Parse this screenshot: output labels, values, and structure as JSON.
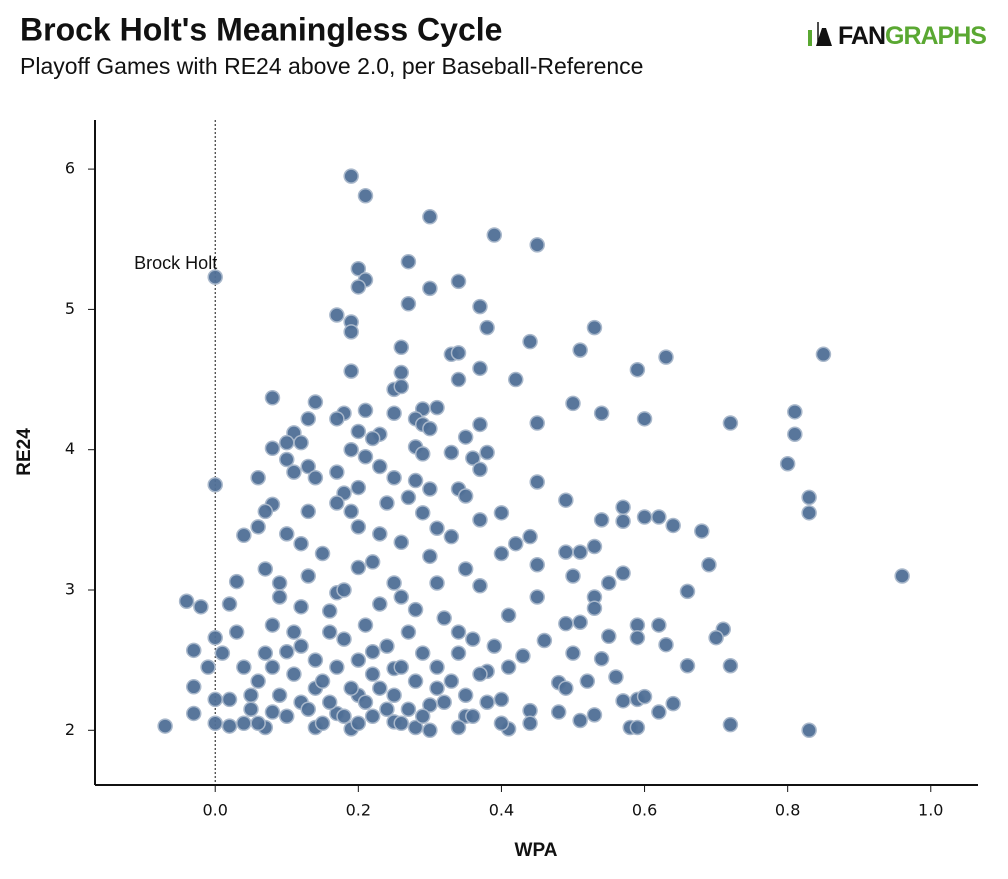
{
  "chart_data": {
    "type": "scatter",
    "title": "Brock Holt's Meaningless Cycle",
    "subtitle": "Playoff Games with RE24 above 2.0, per Baseball-Reference",
    "x_label": "WPA",
    "y_label": "RE24",
    "logo": {
      "part1": "FAN",
      "part2": "GRAPHS"
    },
    "annotation": {
      "text": "Brock Holt",
      "x": 0,
      "y": 5.23
    },
    "reference_line_x": 0,
    "color": "#4f6f96",
    "edge_color": "#a9b8cb",
    "xlim": [
      -0.168,
      1.066
    ],
    "ylim": [
      1.61,
      6.35
    ],
    "xticks": [
      {
        "value": 0,
        "label": "0.0"
      },
      0.2,
      0.4,
      0.6,
      0.8,
      {
        "value": 1,
        "label": "1.0"
      }
    ],
    "yticks": [
      2,
      3,
      4,
      5,
      6
    ],
    "x": [
      0.19,
      0.21,
      0.3,
      0.39,
      0.45,
      0.27,
      0.2,
      0.21,
      0.34,
      0.2,
      0.3,
      0,
      0.27,
      0.37,
      0.17,
      0.19,
      0.38,
      0.53,
      0.19,
      0.26,
      0.44,
      0.51,
      0.33,
      0.34,
      0.63,
      0.85,
      0.37,
      0.59,
      0.19,
      0.26,
      0.42,
      0.34,
      0.25,
      0.26,
      0.08,
      0.14,
      0.5,
      0.29,
      0.31,
      0.21,
      0.18,
      0.25,
      0.54,
      0.81,
      0.13,
      0.17,
      0.28,
      0.6,
      0.72,
      0.45,
      0.37,
      0.29,
      0.11,
      0.3,
      0.2,
      0.23,
      0.81,
      0.1,
      0.12,
      0.22,
      0.35,
      0.08,
      0.19,
      0.28,
      0.33,
      0.38,
      0.1,
      0.21,
      0.29,
      0.36,
      0.13,
      0.23,
      0.37,
      0.8,
      0.11,
      0.17,
      0.06,
      0.14,
      0.25,
      0.28,
      0.45,
      0,
      0.2,
      0.3,
      0.34,
      0.18,
      0.27,
      0.35,
      0.83,
      0.49,
      0.08,
      0.17,
      0.24,
      0.57,
      0.07,
      0.13,
      0.19,
      0.29,
      0.4,
      0.83,
      0.54,
      0.57,
      0.6,
      0.62,
      0.64,
      0.06,
      0.2,
      0.31,
      0.37,
      0.68,
      0.04,
      0.1,
      0.23,
      0.33,
      0.44,
      0.12,
      0.26,
      0.42,
      0.53,
      0.49,
      0.51,
      0.4,
      0.15,
      0.3,
      0.45,
      0.69,
      0.07,
      0.2,
      0.57,
      0.96,
      0.5,
      0.03,
      0.09,
      0.25,
      0.55,
      0.37,
      0.66,
      0.17,
      0.45,
      0.53,
      -0.04,
      -0.02,
      0.02,
      0.12,
      0.28,
      0.53,
      0.41,
      0.51,
      0.59,
      0.62,
      0.71,
      0.03,
      0.16,
      0.34,
      0.49,
      0,
      0.55,
      0.59,
      0.7,
      0.46,
      0.63,
      -0.03,
      0.01,
      0.1,
      0.22,
      0.5,
      0.43,
      0.54,
      0.66,
      0.72,
      -0.01,
      0.08,
      0.25,
      0.38,
      0.56,
      0.48,
      0.52,
      -0.03,
      0.14,
      0.31,
      0.49,
      0.05,
      0.2,
      0.4,
      0.59,
      0.6,
      0.57,
      0.64,
      0,
      0.02,
      0.12,
      0.3,
      0.44,
      0.48,
      0.53,
      0.62,
      -0.03,
      0.08,
      0.17,
      0.35,
      0.51,
      0,
      0.04,
      0.25,
      0.72,
      0.44,
      0.58,
      0.59,
      -0.07,
      0.02,
      0.07,
      0.14,
      0.19,
      0.28,
      0.34,
      0.41,
      0.83,
      0.05,
      0.06,
      0.07,
      0.08,
      0.09,
      0.1,
      0.11,
      0.12,
      0.13,
      0.14,
      0.15,
      0.15,
      0.16,
      0.16,
      0.17,
      0.18,
      0.18,
      0.19,
      0.2,
      0.2,
      0.21,
      0.21,
      0.22,
      0.22,
      0.23,
      0.23,
      0.24,
      0.24,
      0.25,
      0.26,
      0.26,
      0.27,
      0.27,
      0.28,
      0.29,
      0.29,
      0.3,
      0.31,
      0.32,
      0.32,
      0.33,
      0.34,
      0.35,
      0.36,
      0.36,
      0.37,
      0.38,
      0.39,
      0.4,
      0.41,
      0.09,
      0.13,
      0.18,
      0.22,
      0.26,
      0.31,
      0.35,
      0.11,
      0.06,
      0.04
    ],
    "values": [
      5.95,
      5.81,
      5.66,
      5.53,
      5.46,
      5.34,
      5.29,
      5.21,
      5.2,
      5.16,
      5.15,
      5.23,
      5.04,
      5.02,
      4.96,
      4.91,
      4.87,
      4.87,
      4.84,
      4.73,
      4.77,
      4.71,
      4.68,
      4.69,
      4.66,
      4.68,
      4.58,
      4.57,
      4.56,
      4.55,
      4.5,
      4.5,
      4.43,
      4.45,
      4.37,
      4.34,
      4.33,
      4.29,
      4.3,
      4.28,
      4.26,
      4.26,
      4.26,
      4.27,
      4.22,
      4.22,
      4.22,
      4.22,
      4.19,
      4.19,
      4.18,
      4.18,
      4.12,
      4.15,
      4.13,
      4.11,
      4.11,
      4.05,
      4.05,
      4.08,
      4.09,
      4.01,
      4.0,
      4.02,
      3.98,
      3.98,
      3.93,
      3.95,
      3.97,
      3.94,
      3.88,
      3.88,
      3.86,
      3.9,
      3.84,
      3.84,
      3.8,
      3.8,
      3.8,
      3.78,
      3.77,
      3.75,
      3.73,
      3.72,
      3.72,
      3.69,
      3.66,
      3.67,
      3.66,
      3.64,
      3.61,
      3.62,
      3.62,
      3.59,
      3.56,
      3.56,
      3.56,
      3.55,
      3.55,
      3.55,
      3.5,
      3.49,
      3.52,
      3.52,
      3.46,
      3.45,
      3.45,
      3.44,
      3.5,
      3.42,
      3.39,
      3.4,
      3.4,
      3.38,
      3.38,
      3.33,
      3.34,
      3.33,
      3.31,
      3.27,
      3.27,
      3.26,
      3.26,
      3.24,
      3.18,
      3.18,
      3.15,
      3.16,
      3.12,
      3.1,
      3.1,
      3.06,
      3.05,
      3.05,
      3.05,
      3.03,
      2.99,
      2.98,
      2.95,
      2.95,
      2.92,
      2.88,
      2.9,
      2.88,
      2.86,
      2.87,
      2.82,
      2.77,
      2.75,
      2.75,
      2.72,
      2.7,
      2.7,
      2.7,
      2.76,
      2.66,
      2.67,
      2.66,
      2.66,
      2.64,
      2.61,
      2.57,
      2.55,
      2.56,
      2.56,
      2.55,
      2.53,
      2.51,
      2.46,
      2.46,
      2.45,
      2.45,
      2.44,
      2.42,
      2.38,
      2.34,
      2.35,
      2.31,
      2.3,
      2.3,
      2.3,
      2.25,
      2.25,
      2.22,
      2.22,
      2.24,
      2.21,
      2.19,
      2.22,
      2.22,
      2.2,
      2.18,
      2.14,
      2.13,
      2.11,
      2.13,
      2.12,
      2.13,
      2.12,
      2.1,
      2.07,
      2.05,
      2.05,
      2.06,
      2.04,
      2.05,
      2.02,
      2.02,
      2.03,
      2.03,
      2.02,
      2.02,
      2.01,
      2.02,
      2.02,
      2.01,
      2.0,
      2.15,
      2.35,
      2.55,
      2.75,
      2.25,
      2.1,
      2.4,
      2.6,
      2.15,
      2.5,
      2.05,
      2.35,
      2.2,
      2.85,
      2.45,
      2.1,
      2.65,
      2.3,
      2.05,
      2.5,
      2.2,
      2.75,
      2.1,
      2.4,
      2.3,
      2.9,
      2.15,
      2.6,
      2.25,
      2.05,
      2.45,
      2.15,
      2.7,
      2.35,
      2.1,
      2.55,
      2.0,
      2.45,
      2.2,
      2.8,
      2.35,
      2.55,
      2.25,
      2.1,
      2.65,
      2.4,
      2.2,
      2.6,
      2.05,
      2.45,
      2.95,
      3.1,
      3.0,
      3.2,
      2.95,
      3.05,
      3.15,
      2.7,
      2.05,
      2.45
    ]
  }
}
